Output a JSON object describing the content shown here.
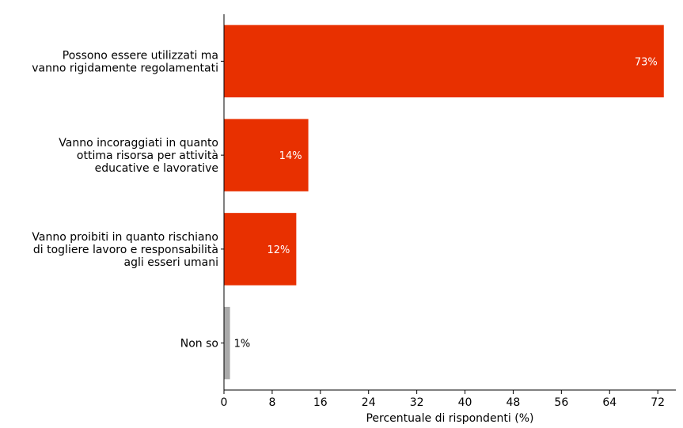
{
  "chart_data": {
    "type": "bar",
    "orientation": "horizontal",
    "categories": [
      [
        "Possono essere utilizzati ma",
        "vanno rigidamente regolamentati"
      ],
      [
        "Vanno incoraggiati in quanto",
        "ottima risorsa per attività",
        "educative e lavorative"
      ],
      [
        "Vanno proibiti in quanto rischiano",
        "di togliere lavoro e responsabilità",
        "agli esseri umani"
      ],
      [
        "Non so"
      ]
    ],
    "values": [
      73,
      14,
      12,
      1
    ],
    "data_labels": [
      "73%",
      "14%",
      "12%",
      "1%"
    ],
    "colors": [
      "#e83000",
      "#e83000",
      "#e83000",
      "#aaaaaa"
    ],
    "label_colors": [
      "#ffffff",
      "#ffffff",
      "#ffffff",
      "#000000"
    ],
    "label_inside": [
      true,
      true,
      true,
      false
    ],
    "xticks": [
      0,
      8,
      16,
      24,
      32,
      40,
      48,
      56,
      64,
      72
    ],
    "xlim": [
      0,
      75
    ],
    "xlabel": "Percentuale di rispondenti (%)",
    "ylabel": "",
    "title": "",
    "grid": false,
    "legend": "none"
  }
}
